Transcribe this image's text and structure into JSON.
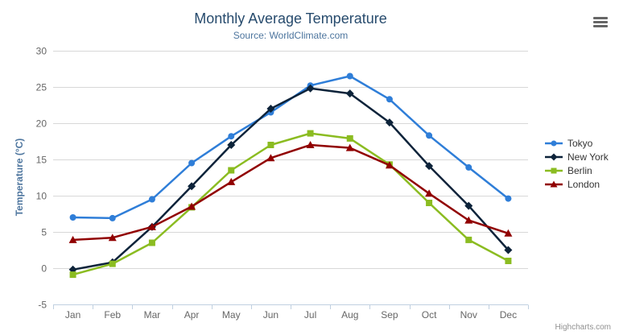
{
  "header": {
    "title": "Monthly Average Temperature",
    "subtitle": "Source: WorldClimate.com"
  },
  "toolbar": {
    "context_menu_icon": "hamburger-menu"
  },
  "credits": {
    "label": "Highcharts.com"
  },
  "chart_data": {
    "type": "line",
    "title": "Monthly Average Temperature",
    "subtitle": "Source: WorldClimate.com",
    "categories": [
      "Jan",
      "Feb",
      "Mar",
      "Apr",
      "May",
      "Jun",
      "Jul",
      "Aug",
      "Sep",
      "Oct",
      "Nov",
      "Dec"
    ],
    "series": [
      {
        "name": "Tokyo",
        "color": "#2f7ed8",
        "marker": "circle",
        "values": [
          7.0,
          6.9,
          9.5,
          14.5,
          18.2,
          21.5,
          25.2,
          26.5,
          23.3,
          18.3,
          13.9,
          9.6
        ]
      },
      {
        "name": "New York",
        "color": "#0d233a",
        "marker": "diamond",
        "values": [
          -0.2,
          0.8,
          5.7,
          11.3,
          17.0,
          22.0,
          24.8,
          24.1,
          20.1,
          14.1,
          8.6,
          2.5
        ]
      },
      {
        "name": "Berlin",
        "color": "#8bbc21",
        "marker": "square",
        "values": [
          -0.9,
          0.6,
          3.5,
          8.4,
          13.5,
          17.0,
          18.6,
          17.9,
          14.3,
          9.0,
          3.9,
          1.0
        ]
      },
      {
        "name": "London",
        "color": "#910000",
        "marker": "triangle",
        "values": [
          3.9,
          4.2,
          5.7,
          8.5,
          11.9,
          15.2,
          17.0,
          16.6,
          14.2,
          10.3,
          6.6,
          4.8
        ]
      }
    ],
    "xlabel": "",
    "ylabel": "Temperature (°C)",
    "ylim": [
      -5,
      30
    ],
    "ytick_step": 5,
    "grid": true,
    "legend_position": "right",
    "axis_colors": {
      "grid": "#d8d8d8",
      "axis_line": "#c0d0e0",
      "labels": "#666666"
    }
  }
}
